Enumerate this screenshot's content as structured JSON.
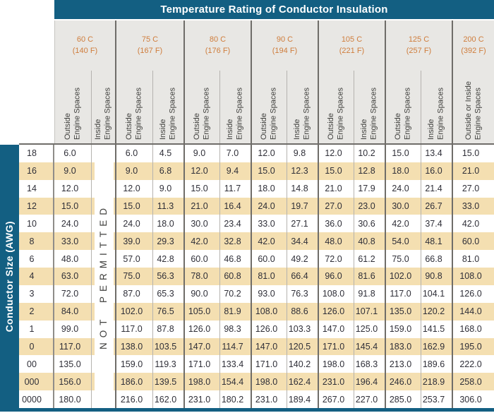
{
  "title": "Temperature Rating of Conductor Insulation",
  "row_axis_label": "Conductor Size (AWG)",
  "not_permitted_label": "NOT PERMITTED",
  "temperature_groups": [
    {
      "celsius": "60 C",
      "fahrenheit": "(140 F)",
      "sub_columns": [
        [
          "Outside",
          "Engine Spaces"
        ],
        [
          "Inside",
          "Engine Spaces"
        ]
      ]
    },
    {
      "celsius": "75 C",
      "fahrenheit": "(167 F)",
      "sub_columns": [
        [
          "Outside",
          "Engine Spaces"
        ],
        [
          "Inside",
          "Engine Spaces"
        ]
      ]
    },
    {
      "celsius": "80 C",
      "fahrenheit": "(176 F)",
      "sub_columns": [
        [
          "Outside",
          "Engine Spaces"
        ],
        [
          "Inside",
          "Engine Spaces"
        ]
      ]
    },
    {
      "celsius": "90 C",
      "fahrenheit": "(194 F)",
      "sub_columns": [
        [
          "Outside",
          "Engine Spaces"
        ],
        [
          "Inside",
          "Engine Spaces"
        ]
      ]
    },
    {
      "celsius": "105 C",
      "fahrenheit": "(221 F)",
      "sub_columns": [
        [
          "Outside",
          "Engine Spaces"
        ],
        [
          "Inside",
          "Engine Spaces"
        ]
      ]
    },
    {
      "celsius": "125 C",
      "fahrenheit": "(257 F)",
      "sub_columns": [
        [
          "Outside",
          "Engine Spaces"
        ],
        [
          "Inside",
          "Engine Spaces"
        ]
      ]
    },
    {
      "celsius": "200 C",
      "fahrenheit": "(392 F)",
      "sub_columns": [
        [
          "Outside or Inside",
          "Engine Spaces"
        ]
      ]
    }
  ],
  "rows": [
    {
      "awg": "18",
      "values": [
        "6.0",
        "",
        "6.0",
        "4.5",
        "9.0",
        "7.0",
        "12.0",
        "9.8",
        "12.0",
        "10.2",
        "15.0",
        "13.4",
        "15.0"
      ]
    },
    {
      "awg": "16",
      "values": [
        "9.0",
        "",
        "9.0",
        "6.8",
        "12.0",
        "9.4",
        "15.0",
        "12.3",
        "15.0",
        "12.8",
        "18.0",
        "16.0",
        "21.0"
      ]
    },
    {
      "awg": "14",
      "values": [
        "12.0",
        "",
        "12.0",
        "9.0",
        "15.0",
        "11.7",
        "18.0",
        "14.8",
        "21.0",
        "17.9",
        "24.0",
        "21.4",
        "27.0"
      ]
    },
    {
      "awg": "12",
      "values": [
        "15.0",
        "",
        "15.0",
        "11.3",
        "21.0",
        "16.4",
        "24.0",
        "19.7",
        "27.0",
        "23.0",
        "30.0",
        "26.7",
        "33.0"
      ]
    },
    {
      "awg": "10",
      "values": [
        "24.0",
        "",
        "24.0",
        "18.0",
        "30.0",
        "23.4",
        "33.0",
        "27.1",
        "36.0",
        "30.6",
        "42.0",
        "37.4",
        "42.0"
      ]
    },
    {
      "awg": "8",
      "values": [
        "33.0",
        "",
        "39.0",
        "29.3",
        "42.0",
        "32.8",
        "42.0",
        "34.4",
        "48.0",
        "40.8",
        "54.0",
        "48.1",
        "60.0"
      ]
    },
    {
      "awg": "6",
      "values": [
        "48.0",
        "",
        "57.0",
        "42.8",
        "60.0",
        "46.8",
        "60.0",
        "49.2",
        "72.0",
        "61.2",
        "75.0",
        "66.8",
        "81.0"
      ]
    },
    {
      "awg": "4",
      "values": [
        "63.0",
        "",
        "75.0",
        "56.3",
        "78.0",
        "60.8",
        "81.0",
        "66.4",
        "96.0",
        "81.6",
        "102.0",
        "90.8",
        "108.0"
      ]
    },
    {
      "awg": "3",
      "values": [
        "72.0",
        "",
        "87.0",
        "65.3",
        "90.0",
        "70.2",
        "93.0",
        "76.3",
        "108.0",
        "91.8",
        "117.0",
        "104.1",
        "126.0"
      ]
    },
    {
      "awg": "2",
      "values": [
        "84.0",
        "",
        "102.0",
        "76.5",
        "105.0",
        "81.9",
        "108.0",
        "88.6",
        "126.0",
        "107.1",
        "135.0",
        "120.2",
        "144.0"
      ]
    },
    {
      "awg": "1",
      "values": [
        "99.0",
        "",
        "117.0",
        "87.8",
        "126.0",
        "98.3",
        "126.0",
        "103.3",
        "147.0",
        "125.0",
        "159.0",
        "141.5",
        "168.0"
      ]
    },
    {
      "awg": "0",
      "values": [
        "117.0",
        "",
        "138.0",
        "103.5",
        "147.0",
        "114.7",
        "147.0",
        "120.5",
        "171.0",
        "145.4",
        "183.0",
        "162.9",
        "195.0"
      ]
    },
    {
      "awg": "00",
      "values": [
        "135.0",
        "",
        "159.0",
        "119.3",
        "171.0",
        "133.4",
        "171.0",
        "140.2",
        "198.0",
        "168.3",
        "213.0",
        "189.6",
        "222.0"
      ]
    },
    {
      "awg": "000",
      "values": [
        "156.0",
        "",
        "186.0",
        "139.5",
        "198.0",
        "154.4",
        "198.0",
        "162.4",
        "231.0",
        "196.4",
        "246.0",
        "218.9",
        "258.0"
      ]
    },
    {
      "awg": "0000",
      "values": [
        "180.0",
        "",
        "216.0",
        "162.0",
        "231.0",
        "180.2",
        "231.0",
        "189.4",
        "267.0",
        "227.0",
        "285.0",
        "253.7",
        "306.0"
      ]
    }
  ],
  "colors": {
    "header_blue": "#135f82",
    "header_gray": "#e8e7e4",
    "band_tan": "#f4dfb1",
    "accent_orange": "#cf7d3c",
    "text_dark": "#2f2f38"
  }
}
